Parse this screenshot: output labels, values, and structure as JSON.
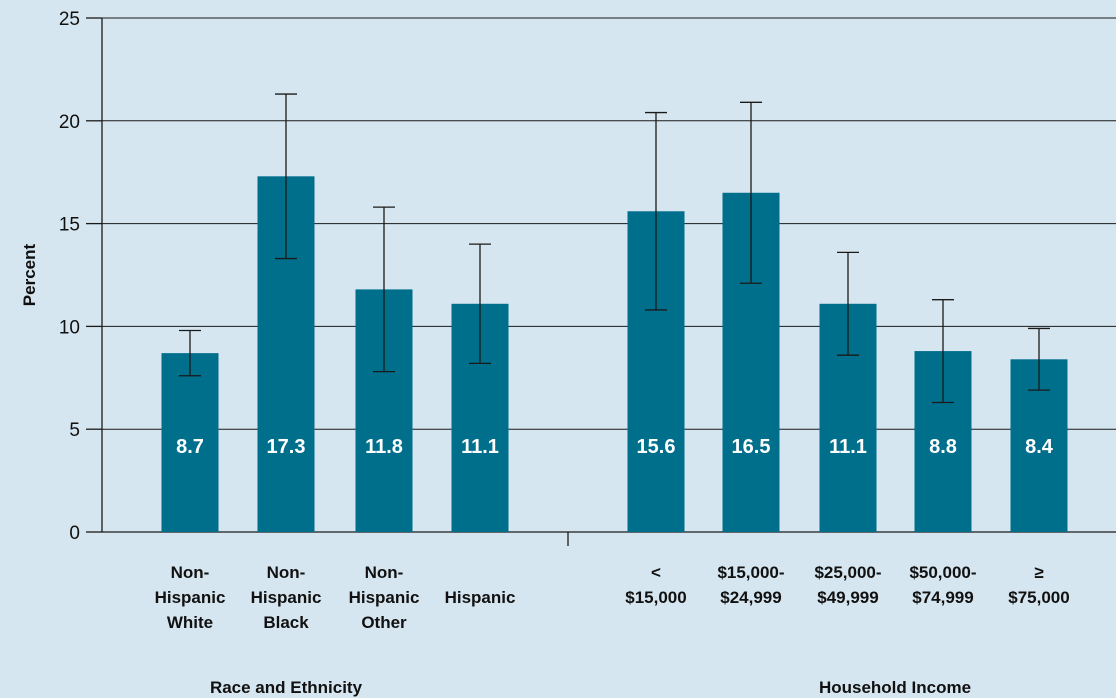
{
  "chart_data": {
    "type": "bar",
    "ylabel": "Percent",
    "ylim": [
      0,
      25
    ],
    "yticks": [
      0,
      5,
      10,
      15,
      20,
      25
    ],
    "grid": true,
    "bar_color": "#006f8c",
    "background_color": "#d6e6f0",
    "groups": [
      {
        "label": "Race and Ethnicity",
        "categories": [
          {
            "lines": [
              "Non-",
              "Hispanic",
              "White"
            ],
            "value": 8.7,
            "value_label": "8.7",
            "ci": [
              7.6,
              9.8
            ]
          },
          {
            "lines": [
              "Non-",
              "Hispanic",
              "Black"
            ],
            "value": 17.3,
            "value_label": "17.3",
            "ci": [
              13.3,
              21.3
            ]
          },
          {
            "lines": [
              "Non-",
              "Hispanic",
              "Other"
            ],
            "value": 11.8,
            "value_label": "11.8",
            "ci": [
              7.8,
              15.8
            ]
          },
          {
            "lines": [
              "",
              "Hispanic"
            ],
            "value": 11.1,
            "value_label": "11.1",
            "ci": [
              8.2,
              14.0
            ]
          }
        ]
      },
      {
        "label": "Household Income",
        "categories": [
          {
            "lines": [
              "<",
              "$15,000"
            ],
            "value": 15.6,
            "value_label": "15.6",
            "ci": [
              10.8,
              20.4
            ]
          },
          {
            "lines": [
              "$15,000-",
              "$24,999"
            ],
            "value": 16.5,
            "value_label": "16.5",
            "ci": [
              12.1,
              20.9
            ]
          },
          {
            "lines": [
              "$25,000-",
              "$49,999"
            ],
            "value": 11.1,
            "value_label": "11.1",
            "ci": [
              8.6,
              13.6
            ]
          },
          {
            "lines": [
              "$50,000-",
              "$74,999"
            ],
            "value": 8.8,
            "value_label": "8.8",
            "ci": [
              6.3,
              11.3
            ]
          },
          {
            "lines": [
              "≥",
              "$75,000"
            ],
            "value": 8.4,
            "value_label": "8.4",
            "ci": [
              6.9,
              9.9
            ]
          }
        ]
      }
    ]
  }
}
